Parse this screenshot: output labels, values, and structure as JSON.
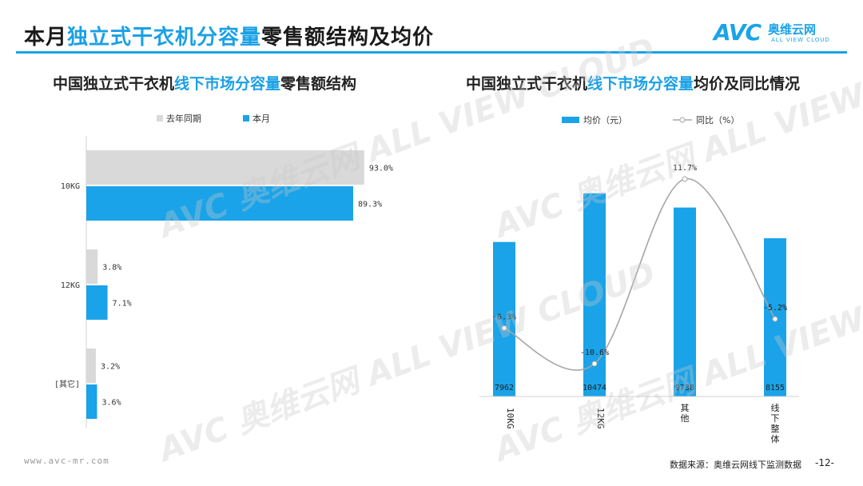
{
  "header": {
    "title_pre": "本月",
    "title_hl": "独立式干衣机分容量",
    "title_post": "零售额结构及均价",
    "logo_mark": "AVC",
    "logo_cn": "奥维云网",
    "logo_en": "ALL VIEW CLOUD"
  },
  "left_chart": {
    "sub_pre": "中国独立式干衣机",
    "sub_hl": "线下市场分容量",
    "sub_post": "零售额结构"
  },
  "right_chart": {
    "sub_pre": "中国独立式干衣机",
    "sub_hl": "线下市场分容量",
    "sub_post": "均价及同比情况"
  },
  "chart_data": [
    {
      "type": "bar",
      "orientation": "horizontal",
      "categories": [
        "10KG",
        "12KG",
        "[其它]"
      ],
      "series": [
        {
          "name": "去年同期",
          "values": [
            93.0,
            3.8,
            3.2
          ],
          "labels": [
            "93.0%",
            "3.8%",
            "3.2%"
          ],
          "color": "#d9d9d9"
        },
        {
          "name": "本月",
          "values": [
            89.3,
            7.1,
            3.6
          ],
          "labels": [
            "89.3%",
            "7.1%",
            "3.6%"
          ],
          "color": "#1aa3e8"
        }
      ],
      "xlim": [
        0,
        100
      ],
      "grid": false,
      "legend": "top-left"
    },
    {
      "type": "bar",
      "categories": [
        "10KG",
        "12KG",
        "其他",
        "线下整体"
      ],
      "series": [
        {
          "name": "均价（元）",
          "type": "bar",
          "values": [
            7962,
            10474,
            9738,
            8155
          ],
          "color": "#1aa3e8"
        },
        {
          "name": "同比（%）",
          "type": "line",
          "values": [
            -6.3,
            -10.6,
            11.7,
            -5.2
          ],
          "labels": [
            "-6.3%",
            "-10.6%",
            "11.7%",
            "-5.2%"
          ],
          "color": "#a6a6a6"
        }
      ],
      "ylim_bar": [
        0,
        13000
      ],
      "ylim_line": [
        -14,
        14
      ],
      "grid": false,
      "legend": "top-center"
    }
  ],
  "footer": {
    "website": "www.avc-mr.com",
    "source": "数据来源：奥维云网线下监测数据",
    "page": "-12-"
  },
  "watermark_text": "AVC 奥维云网 ALL VIEW CLOUD"
}
